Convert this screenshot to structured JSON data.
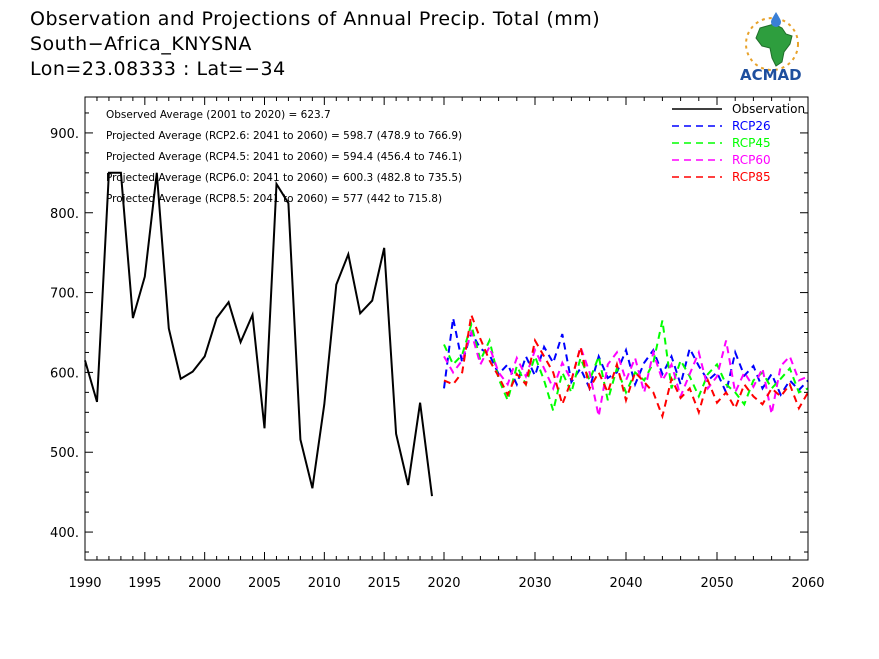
{
  "header": {
    "title": "Observation and Projections of Annual Precip. Total (mm)",
    "station": "South−Africa_KNYSNA",
    "coords": "Lon=23.08333 : Lat=−34"
  },
  "logo": {
    "text": "ACMAD",
    "icon": "africa-map-sun-drop-logo"
  },
  "annotations": [
    "Observed Average (2001 to 2020) = 623.7",
    "Projected Average (RCP2.6: 2041 to 2060) = 598.7 (478.9 to 766.9)",
    "Projected Average (RCP4.5: 2041 to 2060) = 594.4 (456.4 to 746.1)",
    "Projected Average (RCP6.0: 2041 to 2060) = 600.3 (482.8 to 735.5)",
    "Projected Average (RCP8.5: 2041 to 2060) = 577 (442 to 715.8)"
  ],
  "chart_data": {
    "type": "line",
    "title": "Observation and Projections of Annual Precip. Total (mm)",
    "xlim": [
      1990,
      2060
    ],
    "ylim": [
      365,
      945
    ],
    "x_ticks": [
      1990,
      1995,
      2000,
      2005,
      2010,
      2015,
      2020,
      2030,
      2040,
      2050,
      2060
    ],
    "x_tick_labels": [
      "1990",
      "1995",
      "2000",
      "2005",
      "2010",
      "2015",
      "2020",
      "2030",
      "2040",
      "2050",
      "2060"
    ],
    "y_ticks": [
      400,
      500,
      600,
      700,
      800,
      900
    ],
    "y_tick_labels": [
      "400.",
      "500.",
      "600.",
      "700.",
      "800.",
      "900."
    ],
    "grid": false,
    "legend_position": "top-right",
    "series": [
      {
        "name": "Observation",
        "color": "#000000",
        "style": "solid",
        "x": [
          1990,
          1991,
          1992,
          1993,
          1994,
          1995,
          1996,
          1997,
          1998,
          1999,
          2000,
          2001,
          2002,
          2003,
          2004,
          2005,
          2006,
          2007,
          2008,
          2009,
          2010,
          2011,
          2012,
          2013,
          2014,
          2015,
          2016,
          2017,
          2018,
          2019
        ],
        "y": [
          615,
          563,
          850,
          850,
          668,
          720,
          850,
          655,
          592,
          601,
          620,
          668,
          688,
          638,
          672,
          530,
          836,
          812,
          516,
          455,
          560,
          710,
          748,
          674,
          690,
          756,
          523,
          459,
          562,
          445
        ]
      },
      {
        "name": "RCP26",
        "color": "#0000ff",
        "style": "dashed",
        "x": [
          2020,
          2021,
          2022,
          2023,
          2024,
          2025,
          2026,
          2027,
          2028,
          2029,
          2030,
          2031,
          2032,
          2033,
          2034,
          2035,
          2036,
          2037,
          2038,
          2039,
          2040,
          2041,
          2042,
          2043,
          2044,
          2045,
          2046,
          2047,
          2048,
          2049,
          2050,
          2051,
          2052,
          2053,
          2054,
          2055,
          2056,
          2057,
          2058,
          2059,
          2060
        ],
        "y": [
          580,
          668,
          612,
          650,
          630,
          622,
          598,
          610,
          585,
          620,
          596,
          632,
          612,
          648,
          588,
          605,
          580,
          620,
          593,
          600,
          628,
          585,
          612,
          628,
          598,
          620,
          585,
          630,
          608,
          590,
          600,
          575,
          625,
          596,
          608,
          580,
          598,
          572,
          590,
          578,
          590
        ]
      },
      {
        "name": "RCP45",
        "color": "#00ff00",
        "style": "dashed",
        "x": [
          2020,
          2021,
          2022,
          2023,
          2024,
          2025,
          2026,
          2027,
          2028,
          2029,
          2030,
          2031,
          2032,
          2033,
          2034,
          2035,
          2036,
          2037,
          2038,
          2039,
          2040,
          2041,
          2042,
          2043,
          2044,
          2045,
          2046,
          2047,
          2048,
          2049,
          2050,
          2051,
          2052,
          2053,
          2054,
          2055,
          2056,
          2057,
          2058,
          2059,
          2060
        ],
        "y": [
          635,
          610,
          622,
          660,
          615,
          640,
          592,
          565,
          608,
          585,
          620,
          590,
          552,
          600,
          575,
          618,
          590,
          620,
          565,
          605,
          575,
          600,
          590,
          612,
          665,
          580,
          615,
          595,
          570,
          598,
          610,
          585,
          575,
          560,
          590,
          600,
          580,
          592,
          605,
          575,
          580
        ]
      },
      {
        "name": "RCP60",
        "color": "#ff00ff",
        "style": "dashed",
        "x": [
          2020,
          2021,
          2022,
          2023,
          2024,
          2025,
          2026,
          2027,
          2028,
          2029,
          2030,
          2031,
          2032,
          2033,
          2034,
          2035,
          2036,
          2037,
          2038,
          2039,
          2040,
          2041,
          2042,
          2043,
          2044,
          2045,
          2046,
          2047,
          2048,
          2049,
          2050,
          2051,
          2052,
          2053,
          2054,
          2055,
          2056,
          2057,
          2058,
          2059,
          2060
        ],
        "y": [
          620,
          600,
          615,
          650,
          610,
          632,
          600,
          585,
          618,
          595,
          628,
          605,
          580,
          612,
          590,
          632,
          600,
          545,
          610,
          625,
          590,
          618,
          575,
          625,
          590,
          610,
          570,
          598,
          625,
          580,
          595,
          640,
          575,
          600,
          582,
          605,
          548,
          608,
          620,
          590,
          595
        ]
      },
      {
        "name": "RCP85",
        "color": "#ff0000",
        "style": "dashed",
        "x": [
          2020,
          2021,
          2022,
          2023,
          2024,
          2025,
          2026,
          2027,
          2028,
          2029,
          2030,
          2031,
          2032,
          2033,
          2034,
          2035,
          2036,
          2037,
          2038,
          2039,
          2040,
          2041,
          2042,
          2043,
          2044,
          2045,
          2046,
          2047,
          2048,
          2049,
          2050,
          2051,
          2052,
          2053,
          2054,
          2055,
          2056,
          2057,
          2058,
          2059,
          2060
        ],
        "y": [
          590,
          585,
          600,
          672,
          642,
          615,
          595,
          572,
          598,
          585,
          640,
          620,
          600,
          560,
          590,
          632,
          580,
          600,
          575,
          610,
          565,
          600,
          588,
          575,
          545,
          592,
          568,
          580,
          550,
          590,
          562,
          575,
          555,
          585,
          570,
          560,
          580,
          570,
          585,
          555,
          575
        ]
      }
    ]
  }
}
